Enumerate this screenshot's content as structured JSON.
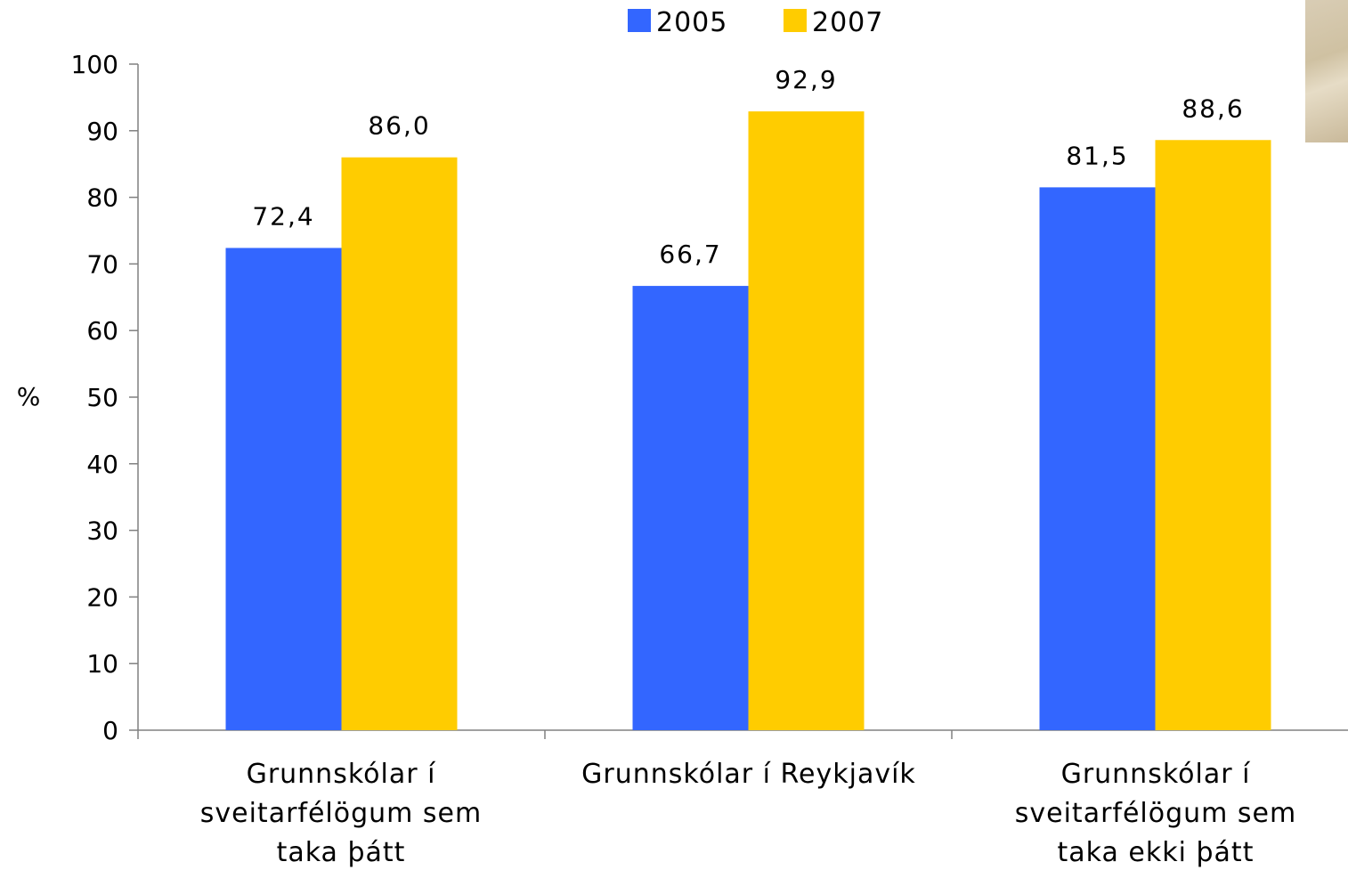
{
  "chart_data": {
    "type": "bar",
    "categories": [
      "Grunnskólar í sveitarfélögum sem taka þátt",
      "Grunnskólar í Reykjavík",
      "Grunnskólar í sveitarfélögum sem taka ekki þátt"
    ],
    "series": [
      {
        "name": "2005",
        "color": "#3366ff",
        "values": [
          72.4,
          66.7,
          81.5
        ],
        "labels": [
          "72,4",
          "66,7",
          "81,5"
        ]
      },
      {
        "name": "2007",
        "color": "#ffcc00",
        "values": [
          86.0,
          92.9,
          88.6
        ],
        "labels": [
          "86,0",
          "92,9",
          "88,6"
        ]
      }
    ],
    "ylabel": "%",
    "ylim": [
      0,
      100
    ],
    "yticks": [
      0,
      10,
      20,
      30,
      40,
      50,
      60,
      70,
      80,
      90,
      100
    ],
    "grid": false,
    "legend": "top-center"
  },
  "decoration": {
    "corner_photo": "photo-fragment"
  }
}
